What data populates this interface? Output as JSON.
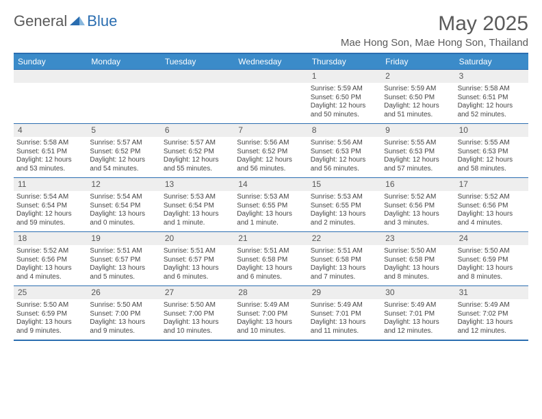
{
  "logo": {
    "part1": "General",
    "part2": "Blue"
  },
  "header": {
    "month_title": "May 2025",
    "location": "Mae Hong Son, Mae Hong Son, Thailand"
  },
  "colors": {
    "header_bg": "#3b8bc9",
    "border": "#2a6db0",
    "daynum_bg": "#eeeeee",
    "text": "#555555"
  },
  "day_names": [
    "Sunday",
    "Monday",
    "Tuesday",
    "Wednesday",
    "Thursday",
    "Friday",
    "Saturday"
  ],
  "weeks": [
    [
      null,
      null,
      null,
      null,
      {
        "n": "1",
        "sr": "Sunrise: 5:59 AM",
        "ss": "Sunset: 6:50 PM",
        "dl1": "Daylight: 12 hours",
        "dl2": "and 50 minutes."
      },
      {
        "n": "2",
        "sr": "Sunrise: 5:59 AM",
        "ss": "Sunset: 6:50 PM",
        "dl1": "Daylight: 12 hours",
        "dl2": "and 51 minutes."
      },
      {
        "n": "3",
        "sr": "Sunrise: 5:58 AM",
        "ss": "Sunset: 6:51 PM",
        "dl1": "Daylight: 12 hours",
        "dl2": "and 52 minutes."
      }
    ],
    [
      {
        "n": "4",
        "sr": "Sunrise: 5:58 AM",
        "ss": "Sunset: 6:51 PM",
        "dl1": "Daylight: 12 hours",
        "dl2": "and 53 minutes."
      },
      {
        "n": "5",
        "sr": "Sunrise: 5:57 AM",
        "ss": "Sunset: 6:52 PM",
        "dl1": "Daylight: 12 hours",
        "dl2": "and 54 minutes."
      },
      {
        "n": "6",
        "sr": "Sunrise: 5:57 AM",
        "ss": "Sunset: 6:52 PM",
        "dl1": "Daylight: 12 hours",
        "dl2": "and 55 minutes."
      },
      {
        "n": "7",
        "sr": "Sunrise: 5:56 AM",
        "ss": "Sunset: 6:52 PM",
        "dl1": "Daylight: 12 hours",
        "dl2": "and 56 minutes."
      },
      {
        "n": "8",
        "sr": "Sunrise: 5:56 AM",
        "ss": "Sunset: 6:53 PM",
        "dl1": "Daylight: 12 hours",
        "dl2": "and 56 minutes."
      },
      {
        "n": "9",
        "sr": "Sunrise: 5:55 AM",
        "ss": "Sunset: 6:53 PM",
        "dl1": "Daylight: 12 hours",
        "dl2": "and 57 minutes."
      },
      {
        "n": "10",
        "sr": "Sunrise: 5:55 AM",
        "ss": "Sunset: 6:53 PM",
        "dl1": "Daylight: 12 hours",
        "dl2": "and 58 minutes."
      }
    ],
    [
      {
        "n": "11",
        "sr": "Sunrise: 5:54 AM",
        "ss": "Sunset: 6:54 PM",
        "dl1": "Daylight: 12 hours",
        "dl2": "and 59 minutes."
      },
      {
        "n": "12",
        "sr": "Sunrise: 5:54 AM",
        "ss": "Sunset: 6:54 PM",
        "dl1": "Daylight: 13 hours",
        "dl2": "and 0 minutes."
      },
      {
        "n": "13",
        "sr": "Sunrise: 5:53 AM",
        "ss": "Sunset: 6:54 PM",
        "dl1": "Daylight: 13 hours",
        "dl2": "and 1 minute."
      },
      {
        "n": "14",
        "sr": "Sunrise: 5:53 AM",
        "ss": "Sunset: 6:55 PM",
        "dl1": "Daylight: 13 hours",
        "dl2": "and 1 minute."
      },
      {
        "n": "15",
        "sr": "Sunrise: 5:53 AM",
        "ss": "Sunset: 6:55 PM",
        "dl1": "Daylight: 13 hours",
        "dl2": "and 2 minutes."
      },
      {
        "n": "16",
        "sr": "Sunrise: 5:52 AM",
        "ss": "Sunset: 6:56 PM",
        "dl1": "Daylight: 13 hours",
        "dl2": "and 3 minutes."
      },
      {
        "n": "17",
        "sr": "Sunrise: 5:52 AM",
        "ss": "Sunset: 6:56 PM",
        "dl1": "Daylight: 13 hours",
        "dl2": "and 4 minutes."
      }
    ],
    [
      {
        "n": "18",
        "sr": "Sunrise: 5:52 AM",
        "ss": "Sunset: 6:56 PM",
        "dl1": "Daylight: 13 hours",
        "dl2": "and 4 minutes."
      },
      {
        "n": "19",
        "sr": "Sunrise: 5:51 AM",
        "ss": "Sunset: 6:57 PM",
        "dl1": "Daylight: 13 hours",
        "dl2": "and 5 minutes."
      },
      {
        "n": "20",
        "sr": "Sunrise: 5:51 AM",
        "ss": "Sunset: 6:57 PM",
        "dl1": "Daylight: 13 hours",
        "dl2": "and 6 minutes."
      },
      {
        "n": "21",
        "sr": "Sunrise: 5:51 AM",
        "ss": "Sunset: 6:58 PM",
        "dl1": "Daylight: 13 hours",
        "dl2": "and 6 minutes."
      },
      {
        "n": "22",
        "sr": "Sunrise: 5:51 AM",
        "ss": "Sunset: 6:58 PM",
        "dl1": "Daylight: 13 hours",
        "dl2": "and 7 minutes."
      },
      {
        "n": "23",
        "sr": "Sunrise: 5:50 AM",
        "ss": "Sunset: 6:58 PM",
        "dl1": "Daylight: 13 hours",
        "dl2": "and 8 minutes."
      },
      {
        "n": "24",
        "sr": "Sunrise: 5:50 AM",
        "ss": "Sunset: 6:59 PM",
        "dl1": "Daylight: 13 hours",
        "dl2": "and 8 minutes."
      }
    ],
    [
      {
        "n": "25",
        "sr": "Sunrise: 5:50 AM",
        "ss": "Sunset: 6:59 PM",
        "dl1": "Daylight: 13 hours",
        "dl2": "and 9 minutes."
      },
      {
        "n": "26",
        "sr": "Sunrise: 5:50 AM",
        "ss": "Sunset: 7:00 PM",
        "dl1": "Daylight: 13 hours",
        "dl2": "and 9 minutes."
      },
      {
        "n": "27",
        "sr": "Sunrise: 5:50 AM",
        "ss": "Sunset: 7:00 PM",
        "dl1": "Daylight: 13 hours",
        "dl2": "and 10 minutes."
      },
      {
        "n": "28",
        "sr": "Sunrise: 5:49 AM",
        "ss": "Sunset: 7:00 PM",
        "dl1": "Daylight: 13 hours",
        "dl2": "and 10 minutes."
      },
      {
        "n": "29",
        "sr": "Sunrise: 5:49 AM",
        "ss": "Sunset: 7:01 PM",
        "dl1": "Daylight: 13 hours",
        "dl2": "and 11 minutes."
      },
      {
        "n": "30",
        "sr": "Sunrise: 5:49 AM",
        "ss": "Sunset: 7:01 PM",
        "dl1": "Daylight: 13 hours",
        "dl2": "and 12 minutes."
      },
      {
        "n": "31",
        "sr": "Sunrise: 5:49 AM",
        "ss": "Sunset: 7:02 PM",
        "dl1": "Daylight: 13 hours",
        "dl2": "and 12 minutes."
      }
    ]
  ]
}
